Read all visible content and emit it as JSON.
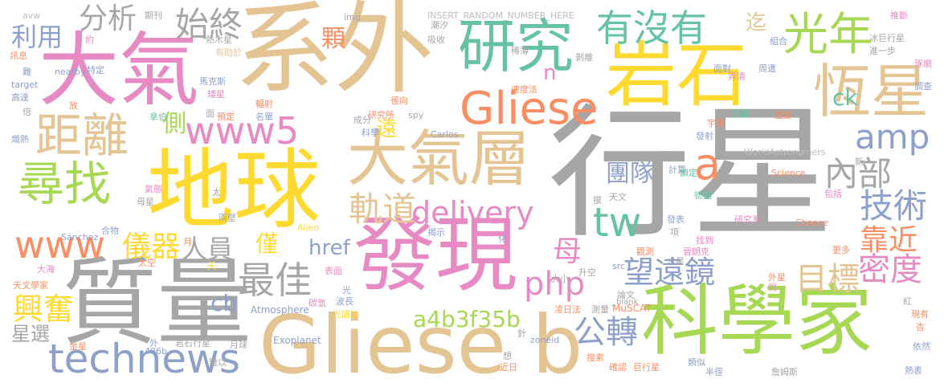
{
  "words": [
    {
      "text": "行星",
      "color": "#a6a6a6"
    },
    {
      "text": "系外",
      "color": "#e5c494"
    },
    {
      "text": "質量",
      "color": "#a6a6a6"
    },
    {
      "text": "地球",
      "color": "#ffd92f"
    },
    {
      "text": "大氣",
      "color": "#e78ac3"
    },
    {
      "text": "發現",
      "color": "#e78ac3"
    },
    {
      "text": "Gliese b",
      "color": "#e5c494"
    },
    {
      "text": "科學家",
      "color": "#a6d854"
    },
    {
      "text": "岩石",
      "color": "#ffd92f"
    },
    {
      "text": "大氣層",
      "color": "#e5c494"
    },
    {
      "text": "恆星",
      "color": "#e5c494"
    },
    {
      "text": "研究",
      "color": "#66c2a5"
    },
    {
      "text": "Gliese",
      "color": "#fc8d62"
    },
    {
      "text": "technews",
      "color": "#8da0cb"
    },
    {
      "text": "距離",
      "color": "#e5c494"
    },
    {
      "text": "尋找",
      "color": "#a6d854"
    },
    {
      "text": "www5",
      "color": "#e78ac3"
    },
    {
      "text": "光年",
      "color": "#a6d854"
    },
    {
      "text": "有沒有",
      "color": "#66c2a5"
    },
    {
      "text": "最佳",
      "color": "#a6a6a6"
    },
    {
      "text": "www",
      "color": "#fc8d62"
    },
    {
      "text": "delivery",
      "color": "#e78ac3"
    },
    {
      "text": "a",
      "color": "#fc8d62"
    },
    {
      "text": "tw",
      "color": "#66c2a5"
    },
    {
      "text": "軌道",
      "color": "#e5c494"
    },
    {
      "text": "始終",
      "color": "#a6a6a6"
    },
    {
      "text": "amp",
      "color": "#8da0cb"
    },
    {
      "text": "內部",
      "color": "#a6a6a6"
    },
    {
      "text": "技術",
      "color": "#8da0cb"
    },
    {
      "text": "密度",
      "color": "#e78ac3"
    },
    {
      "text": "望遠鏡",
      "color": "#8da0cb"
    },
    {
      "text": "php",
      "color": "#e78ac3"
    },
    {
      "text": "目標",
      "color": "#e5c494"
    },
    {
      "text": "靠近",
      "color": "#fc8d62"
    },
    {
      "text": "公轉",
      "color": "#8da0cb"
    },
    {
      "text": "儀器",
      "color": "#ffd92f"
    },
    {
      "text": "人員",
      "color": "#a6a6a6"
    },
    {
      "text": "a4b3f35b",
      "color": "#a6d854"
    },
    {
      "text": "團隊",
      "color": "#8da0cb"
    },
    {
      "text": "母",
      "color": "#e78ac3"
    },
    {
      "text": "僅",
      "color": "#ffd92f"
    },
    {
      "text": "href",
      "color": "#8da0cb"
    },
    {
      "text": "興奮",
      "color": "#ffd92f"
    },
    {
      "text": "分析",
      "color": "#a6a6a6"
    },
    {
      "text": "利用",
      "color": "#8da0cb"
    },
    {
      "text": "cb",
      "color": "#8da0cb"
    },
    {
      "text": "側",
      "color": "#a6d854"
    },
    {
      "text": "顆",
      "color": "#fc8d62"
    },
    {
      "text": "遠",
      "color": "#ffd92f"
    },
    {
      "text": "星選",
      "color": "#a6a6a6"
    },
    {
      "text": "ck",
      "color": "#66c2a5"
    },
    {
      "text": "n",
      "color": "#e78ac3"
    },
    {
      "text": "迄",
      "color": "#e5c494"
    },
    {
      "text": "INSERT_RANDOM_NUMBER_HERE",
      "color": "#bdbdbd"
    },
    {
      "text": "WorldAstronomers",
      "color": "#bdbdbd"
    },
    {
      "text": "Atmosphere",
      "color": "#8da0cb"
    },
    {
      "text": "Exoplanet",
      "color": "#8da0cb"
    },
    {
      "text": "MuSCAT",
      "color": "#fc8d62"
    },
    {
      "text": "Science",
      "color": "#fc8d62"
    },
    {
      "text": "Chance",
      "color": "#fc8d62"
    },
    {
      "text": "Sánchez",
      "color": "#8da0cb"
    },
    {
      "text": "Carlos",
      "color": "#8da0cb"
    },
    {
      "text": "Alien",
      "color": "#ffd92f"
    },
    {
      "text": "zoneid",
      "color": "#8da0cb"
    },
    {
      "text": "_blank",
      "color": "#a6a6a6"
    },
    {
      "text": "src",
      "color": "#8da0cb"
    },
    {
      "text": "img",
      "color": "#a6a6a6"
    },
    {
      "text": "spy",
      "color": "#a6a6a6"
    },
    {
      "text": "target",
      "color": "#8da0cb"
    },
    {
      "text": "nearby",
      "color": "#8da0cb"
    },
    {
      "text": "avw",
      "color": "#bdbdbd"
    },
    {
      "text": "486b",
      "color": "#8da0cb"
    },
    {
      "text": "期刊",
      "color": "#a6a6a6"
    },
    {
      "text": "約",
      "color": "#e78ac3"
    },
    {
      "text": "熱木星",
      "color": "#a6a6a6"
    },
    {
      "text": "有助於",
      "color": "#e5c494"
    },
    {
      "text": "特定",
      "color": "#8da0cb"
    },
    {
      "text": "訊息",
      "color": "#fc8d62"
    },
    {
      "text": "難",
      "color": "#8da0cb"
    },
    {
      "text": "高達",
      "color": "#8da0cb"
    },
    {
      "text": "倍",
      "color": "#a6a6a6"
    },
    {
      "text": "熾熱",
      "color": "#8da0cb"
    },
    {
      "text": "馬克斯",
      "color": "#8da0cb"
    },
    {
      "text": "矮星",
      "color": "#e78ac3"
    },
    {
      "text": "預定",
      "color": "#fc8d62"
    },
    {
      "text": "輻射",
      "color": "#fc8d62"
    },
    {
      "text": "名單",
      "color": "#8da0cb"
    },
    {
      "text": "拿伯",
      "color": "#66c2a5"
    },
    {
      "text": "面",
      "color": "#a6a6a6"
    },
    {
      "text": "放",
      "color": "#fc8d62"
    },
    {
      "text": "吸收",
      "color": "#a6a6a6"
    },
    {
      "text": "潮汐",
      "color": "#a6a6a6"
    },
    {
      "text": "稀薄",
      "color": "#a6a6a6"
    },
    {
      "text": "剝離",
      "color": "#a6a6a6"
    },
    {
      "text": "速度法",
      "color": "#fc8d62"
    },
    {
      "text": "徑向",
      "color": "#fc8d62"
    },
    {
      "text": "研究所",
      "color": "#fc8d62"
    },
    {
      "text": "成分",
      "color": "#a6a6a6"
    },
    {
      "text": "科學",
      "color": "#8da0cb"
    },
    {
      "text": "面對",
      "color": "#8da0cb"
    },
    {
      "text": "弄清",
      "color": "#e78ac3"
    },
    {
      "text": "周遭",
      "color": "#8da0cb"
    },
    {
      "text": "金屬",
      "color": "#66c2a5"
    },
    {
      "text": "溫度",
      "color": "#fc8d62"
    },
    {
      "text": "宇宙",
      "color": "#fc8d62"
    },
    {
      "text": "發射",
      "color": "#8da0cb"
    },
    {
      "text": "期盼",
      "color": "#a6a6a6"
    },
    {
      "text": "計算",
      "color": "#8da0cb"
    },
    {
      "text": "鎖定",
      "color": "#66c2a5"
    },
    {
      "text": "德國",
      "color": "#66c2a5"
    },
    {
      "text": "包括",
      "color": "#e78ac3"
    },
    {
      "text": "推斷",
      "color": "#e78ac3"
    },
    {
      "text": "冰巨行星",
      "color": "#a6a6a6"
    },
    {
      "text": "組合",
      "color": "#8da0cb"
    },
    {
      "text": "進一步",
      "color": "#a6a6a6"
    },
    {
      "text": "琢磨",
      "color": "#e78ac3"
    },
    {
      "text": "調查",
      "color": "#8da0cb"
    },
    {
      "text": "新",
      "color": "#a6a6a6"
    },
    {
      "text": "更多",
      "color": "#fc8d62"
    },
    {
      "text": "天文",
      "color": "#a6a6a6"
    },
    {
      "text": "摸",
      "color": "#a6a6a6"
    },
    {
      "text": "發表",
      "color": "#8da0cb"
    },
    {
      "text": "研究系",
      "color": "#e78ac3"
    },
    {
      "text": "項",
      "color": "#a6a6a6"
    },
    {
      "text": "找到",
      "color": "#e78ac3"
    },
    {
      "text": "晉朗克",
      "color": "#e78ac3"
    },
    {
      "text": "觀測",
      "color": "#fc8d62"
    },
    {
      "text": "揭示",
      "color": "#8da0cb"
    },
    {
      "text": "化",
      "color": "#8da0cb"
    },
    {
      "text": "外星",
      "color": "#fc8d62"
    },
    {
      "text": "說",
      "color": "#e78ac3"
    },
    {
      "text": "木星",
      "color": "#a6a6a6"
    },
    {
      "text": "升空",
      "color": "#a6a6a6"
    },
    {
      "text": "大小",
      "color": "#a6a6a6"
    },
    {
      "text": "凌日法",
      "color": "#fc8d62"
    },
    {
      "text": "測量",
      "color": "#a6a6a6"
    },
    {
      "text": "光譜法",
      "color": "#ffd92f"
    },
    {
      "text": "波長",
      "color": "#8da0cb"
    },
    {
      "text": "碳氫",
      "color": "#e78ac3"
    },
    {
      "text": "表面",
      "color": "#e78ac3"
    },
    {
      "text": "光",
      "color": "#8da0cb"
    },
    {
      "text": "太空",
      "color": "#fc8d62"
    },
    {
      "text": "月",
      "color": "#fc8d62"
    },
    {
      "text": "天",
      "color": "#ffd92f"
    },
    {
      "text": "合物",
      "color": "#8da0cb"
    },
    {
      "text": "氣態",
      "color": "#e78ac3"
    },
    {
      "text": "母星",
      "color": "#a6a6a6"
    },
    {
      "text": "太",
      "color": "#a6a6a6"
    },
    {
      "text": "兩壁",
      "color": "#a6a6a6"
    },
    {
      "text": "大海",
      "color": "#e78ac3"
    },
    {
      "text": "天文學家",
      "color": "#fc8d62"
    },
    {
      "text": "金星",
      "color": "#fc8d62"
    },
    {
      "text": "外",
      "color": "#8da0cb"
    },
    {
      "text": "岩石行星",
      "color": "#a6a6a6"
    },
    {
      "text": "月球",
      "color": "#a6a6a6"
    },
    {
      "text": "難以",
      "color": "#a6a6a6"
    },
    {
      "text": "想",
      "color": "#a6a6a6"
    },
    {
      "text": "近日",
      "color": "#fc8d62"
    },
    {
      "text": "搜索",
      "color": "#fc8d62"
    },
    {
      "text": "確認",
      "color": "#fc8d62"
    },
    {
      "text": "巨行星",
      "color": "#fc8d62"
    },
    {
      "text": "類似",
      "color": "#8da0cb"
    },
    {
      "text": "半徑",
      "color": "#8da0cb"
    },
    {
      "text": "詹姆斯",
      "color": "#a6a6a6"
    },
    {
      "text": "熱衷",
      "color": "#8da0cb"
    },
    {
      "text": "依然",
      "color": "#8da0cb"
    },
    {
      "text": "杏",
      "color": "#fc8d62"
    },
    {
      "text": "現有",
      "color": "#fc8d62"
    },
    {
      "text": "紅",
      "color": "#a6a6a6"
    },
    {
      "text": "針",
      "color": "#a6a6a6"
    },
    {
      "text": "論文",
      "color": "#a6a6a6"
    }
  ]
}
